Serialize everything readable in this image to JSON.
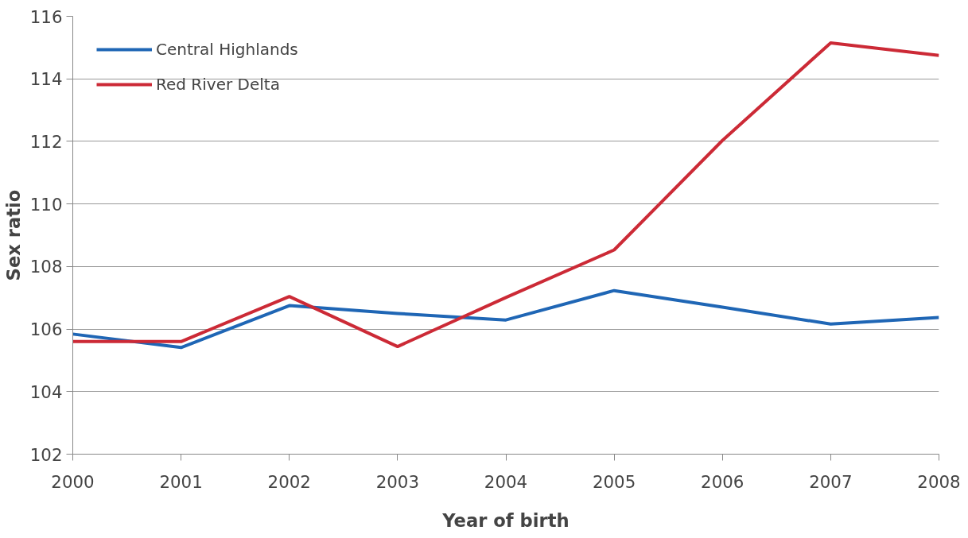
{
  "chart_data": {
    "type": "line",
    "xlabel": "Year of birth",
    "ylabel": "Sex ratio",
    "x": [
      2000,
      2001,
      2002,
      2003,
      2004,
      2005,
      2006,
      2007,
      2008
    ],
    "xlim": [
      2000,
      2008
    ],
    "xticks": [
      2000,
      2001,
      2002,
      2003,
      2004,
      2005,
      2006,
      2007,
      2008
    ],
    "ylim": [
      102,
      116
    ],
    "yticks": [
      102,
      104,
      106,
      108,
      110,
      112,
      114,
      116
    ],
    "grid": "y",
    "legend": "top left",
    "marker": "none",
    "line_style": "solid",
    "series": [
      {
        "name": "Central Highlands",
        "color": "#1f66b5",
        "values": [
          105.84,
          105.41,
          106.75,
          106.5,
          106.29,
          107.23,
          106.7,
          106.16,
          106.37
        ]
      },
      {
        "name": "Red River Delta",
        "color": "#cc2a36",
        "values": [
          105.6,
          105.6,
          107.04,
          105.44,
          107.01,
          108.53,
          112.03,
          115.15,
          114.75
        ]
      }
    ]
  }
}
